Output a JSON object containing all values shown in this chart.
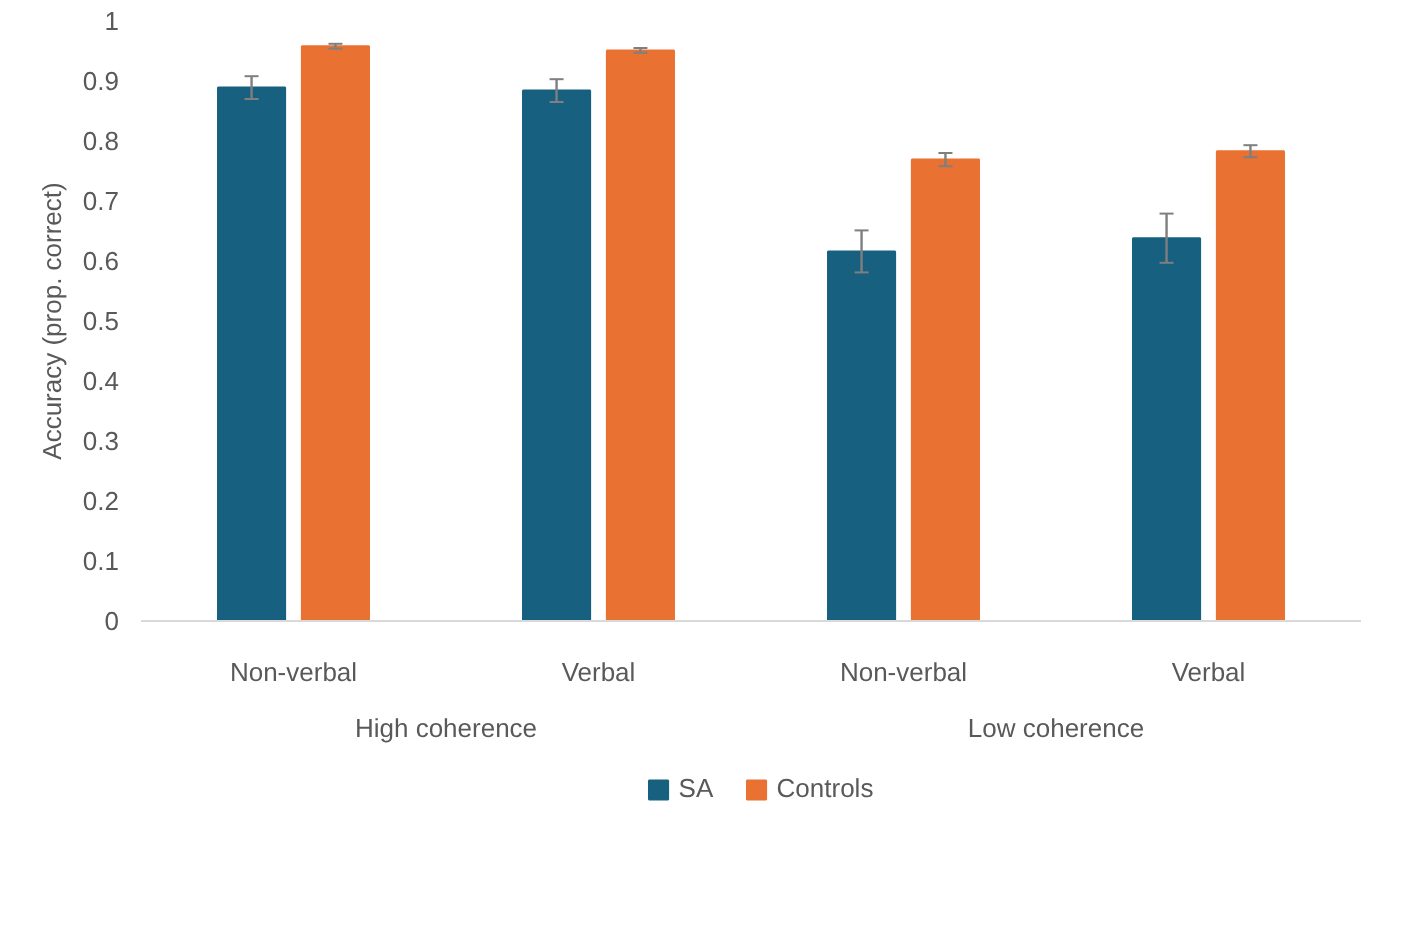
{
  "chart_data": {
    "type": "bar",
    "ylabel": "Accuracy (prop. correct)",
    "categories": [
      "Non-verbal",
      "Verbal",
      "Non-verbal",
      "Verbal"
    ],
    "annotations": [
      "High coherence",
      "Low coherence"
    ],
    "series": [
      {
        "name": "SA",
        "color": "#17607f",
        "values": [
          0.889,
          0.884,
          0.616,
          0.638
        ],
        "errors": [
          0.019,
          0.019,
          0.035,
          0.041
        ]
      },
      {
        "name": "Controls",
        "color": "#e97132",
        "values": [
          0.958,
          0.951,
          0.769,
          0.783
        ],
        "errors": [
          0.004,
          0.004,
          0.011,
          0.01
        ]
      }
    ],
    "ylim": [
      0,
      1
    ],
    "yticks": [
      0,
      0.1,
      0.2,
      0.3,
      0.4,
      0.5,
      0.6,
      0.7,
      0.8,
      0.9,
      1
    ],
    "grid": false,
    "legend": "bottom"
  }
}
